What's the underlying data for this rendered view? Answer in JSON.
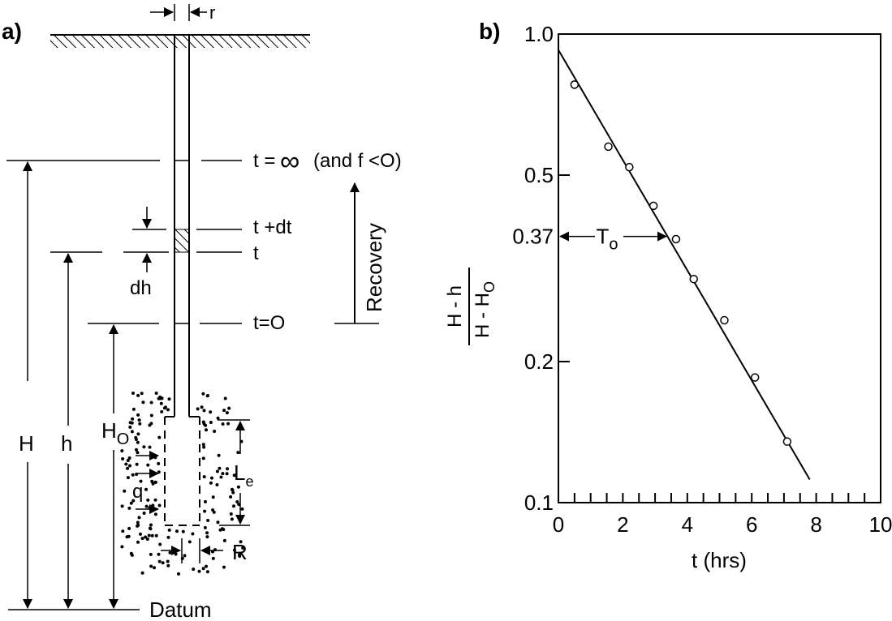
{
  "panel_a": {
    "label": "a)",
    "r": "r",
    "t_inf": "t =",
    "inf_symbol": "∞",
    "t_inf_note": "(and f <O)",
    "t_dt": "t +dt",
    "t": "t",
    "t0": "t=O",
    "dh": "dh",
    "recovery": "Recovery",
    "H": "H",
    "h": "h",
    "H0_main": "H",
    "H0_sub": "O",
    "q": "q",
    "Le_main": "L",
    "Le_sub": "e",
    "R": "R",
    "datum": "Datum"
  },
  "panel_b": {
    "label": "b)",
    "y_label": {
      "numerator": "H - h",
      "denominator_main": "H - H",
      "denominator_sub": "O"
    },
    "x_label": "t (hrs)",
    "t0_marker": {
      "main": "T",
      "sub": "o"
    },
    "y_marker": "0.37",
    "y_tick_labels": [
      "1.0",
      "0.5",
      "0.2",
      "0.1"
    ],
    "x_tick_labels": [
      "0",
      "2",
      "4",
      "6",
      "8",
      "10"
    ]
  },
  "chart_data": {
    "type": "scatter",
    "y_scale": "log",
    "xlim": [
      0,
      10
    ],
    "ylim": [
      0.1,
      1.0
    ],
    "y_ticks": [
      1.0,
      0.5,
      0.2,
      0.1
    ],
    "x_ticks": [
      0,
      2,
      4,
      6,
      8,
      10
    ],
    "points": [
      {
        "x": 0.5,
        "y": 0.78
      },
      {
        "x": 1.55,
        "y": 0.575
      },
      {
        "x": 2.2,
        "y": 0.52
      },
      {
        "x": 2.95,
        "y": 0.43
      },
      {
        "x": 3.65,
        "y": 0.365
      },
      {
        "x": 4.2,
        "y": 0.3
      },
      {
        "x": 5.15,
        "y": 0.245
      },
      {
        "x": 6.1,
        "y": 0.185
      },
      {
        "x": 7.1,
        "y": 0.135
      }
    ],
    "fit_line": [
      {
        "x": 0.0,
        "y": 0.925
      },
      {
        "x": 7.8,
        "y": 0.112
      }
    ],
    "marker": {
      "x": 3.4,
      "y": 0.37
    }
  }
}
